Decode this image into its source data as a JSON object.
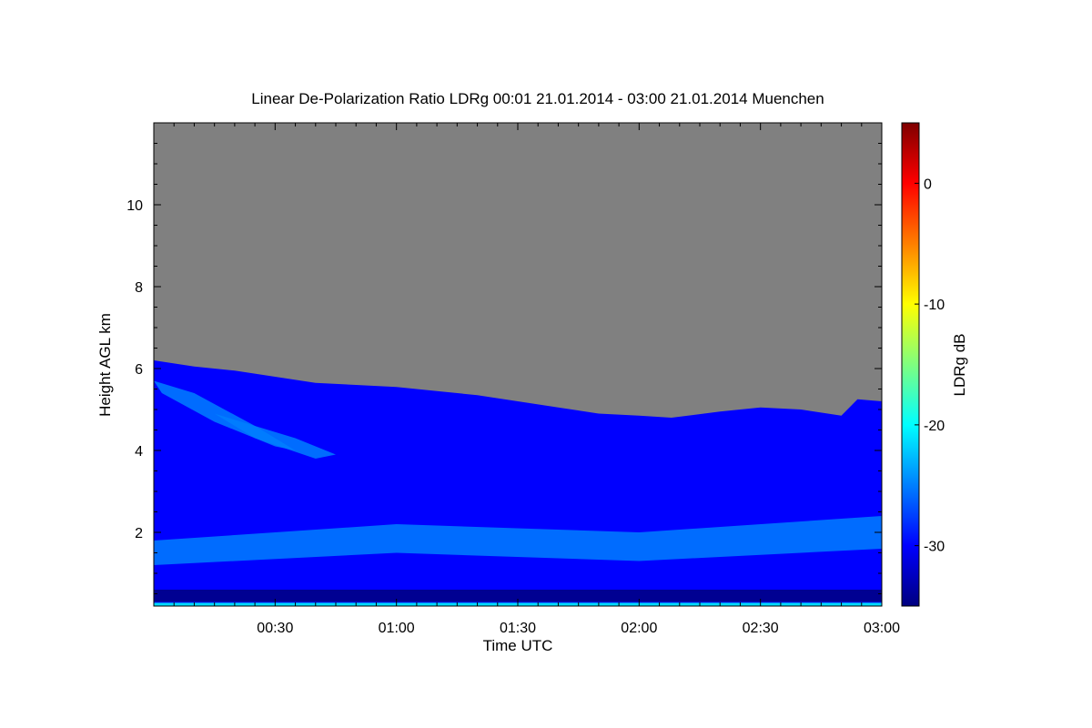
{
  "chart_data": {
    "type": "heatmap",
    "title": "Linear De-Polarization Ratio LDRg   00:01 21.01.2014 - 03:00 21.01.2014 Muenchen",
    "xlabel": "Time UTC",
    "ylabel": "Height AGL km",
    "x_range_minutes": [
      0,
      180
    ],
    "y_range_km": [
      0.2,
      12.0
    ],
    "x_ticks": [
      {
        "minute": 30,
        "label": "00:30"
      },
      {
        "minute": 60,
        "label": "01:00"
      },
      {
        "minute": 90,
        "label": "01:30"
      },
      {
        "minute": 120,
        "label": "02:00"
      },
      {
        "minute": 150,
        "label": "02:30"
      },
      {
        "minute": 180,
        "label": "03:00"
      }
    ],
    "y_ticks": [
      {
        "value": 2,
        "label": "2"
      },
      {
        "value": 4,
        "label": "4"
      },
      {
        "value": 6,
        "label": "6"
      },
      {
        "value": 8,
        "label": "8"
      },
      {
        "value": 10,
        "label": "10"
      }
    ],
    "colorbar": {
      "label": "LDRg dB",
      "range": [
        -35,
        5
      ],
      "ticks": [
        {
          "value": 0,
          "label": "0"
        },
        {
          "value": -10,
          "label": "-10"
        },
        {
          "value": -20,
          "label": "-20"
        },
        {
          "value": -30,
          "label": "-30"
        }
      ],
      "colormap": [
        "#00007f",
        "#0000ff",
        "#007fff",
        "#00ffff",
        "#7fff7f",
        "#ffff00",
        "#ff7f00",
        "#ff0000",
        "#7f0000"
      ]
    },
    "no_signal_color": "#808080",
    "signal_top_km": [
      {
        "minute": 0,
        "height": 6.2
      },
      {
        "minute": 10,
        "height": 6.05
      },
      {
        "minute": 20,
        "height": 5.95
      },
      {
        "minute": 30,
        "height": 5.8
      },
      {
        "minute": 40,
        "height": 5.65
      },
      {
        "minute": 50,
        "height": 5.6
      },
      {
        "minute": 60,
        "height": 5.55
      },
      {
        "minute": 70,
        "height": 5.45
      },
      {
        "minute": 80,
        "height": 5.35
      },
      {
        "minute": 90,
        "height": 5.2
      },
      {
        "minute": 100,
        "height": 5.05
      },
      {
        "minute": 110,
        "height": 4.9
      },
      {
        "minute": 120,
        "height": 4.85
      },
      {
        "minute": 128,
        "height": 4.8
      },
      {
        "minute": 140,
        "height": 4.95
      },
      {
        "minute": 150,
        "height": 5.05
      },
      {
        "minute": 160,
        "height": 5.0
      },
      {
        "minute": 170,
        "height": 4.85
      },
      {
        "minute": 174,
        "height": 5.25
      },
      {
        "minute": 180,
        "height": 5.2
      }
    ],
    "background_ldr_db": -28,
    "features": [
      {
        "name": "elevated depolarization streak",
        "ldr_db": -23,
        "points": [
          [
            0,
            5.7
          ],
          [
            10,
            5.4
          ],
          [
            25,
            4.6
          ],
          [
            35,
            4.0
          ],
          [
            30,
            4.1
          ],
          [
            15,
            4.7
          ],
          [
            2,
            5.4
          ]
        ]
      },
      {
        "name": "lower streak",
        "ldr_db": -24,
        "points": [
          [
            15,
            4.9
          ],
          [
            35,
            4.3
          ],
          [
            45,
            3.9
          ],
          [
            40,
            3.8
          ],
          [
            25,
            4.3
          ]
        ]
      },
      {
        "name": "boundary layer band",
        "ldr_db": -26,
        "points": [
          [
            0,
            1.2
          ],
          [
            60,
            1.5
          ],
          [
            120,
            1.3
          ],
          [
            180,
            1.6
          ],
          [
            180,
            2.4
          ],
          [
            120,
            2.0
          ],
          [
            60,
            2.2
          ],
          [
            0,
            1.8
          ]
        ]
      },
      {
        "name": "near-ground layer",
        "ldr_db": -33,
        "points": [
          [
            0,
            0.3
          ],
          [
            180,
            0.3
          ],
          [
            180,
            0.6
          ],
          [
            0,
            0.6
          ]
        ]
      },
      {
        "name": "surface echo",
        "ldr_db": -20,
        "points": [
          [
            0,
            0.2
          ],
          [
            180,
            0.2
          ],
          [
            180,
            0.28
          ],
          [
            0,
            0.28
          ]
        ]
      }
    ]
  }
}
